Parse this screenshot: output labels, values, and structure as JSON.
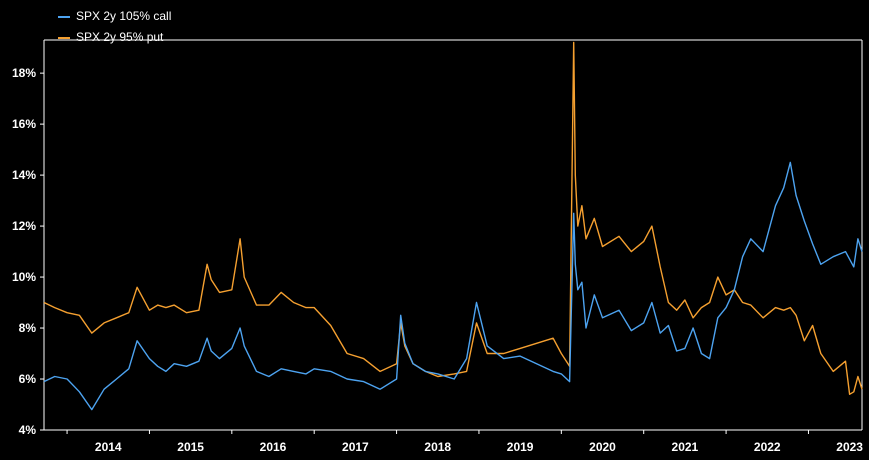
{
  "chart_data": {
    "type": "line",
    "title": "",
    "xlabel": "",
    "ylabel": "",
    "x_tick_labels": [
      "2014",
      "2015",
      "2016",
      "2017",
      "2018",
      "2019",
      "2020",
      "2021",
      "2022",
      "2023"
    ],
    "y_tick_labels": [
      "4%",
      "6%",
      "8%",
      "10%",
      "12%",
      "14%",
      "16%",
      "18%"
    ],
    "ylim": [
      4,
      19.3
    ],
    "xlim": [
      2013.72,
      2023.65
    ],
    "grid": false,
    "legend_position": "top-left",
    "series": [
      {
        "name": "SPX 2y 105% call",
        "color": "#4da3f0",
        "x": [
          2013.72,
          2013.85,
          2014.0,
          2014.15,
          2014.3,
          2014.45,
          2014.6,
          2014.75,
          2014.85,
          2015.0,
          2015.1,
          2015.2,
          2015.3,
          2015.45,
          2015.6,
          2015.7,
          2015.75,
          2015.85,
          2016.0,
          2016.1,
          2016.15,
          2016.3,
          2016.45,
          2016.6,
          2016.75,
          2016.9,
          2017.0,
          2017.2,
          2017.4,
          2017.6,
          2017.8,
          2018.0,
          2018.05,
          2018.1,
          2018.2,
          2018.35,
          2018.5,
          2018.7,
          2018.85,
          2018.97,
          2019.1,
          2019.3,
          2019.5,
          2019.7,
          2019.9,
          2020.0,
          2020.1,
          2020.15,
          2020.17,
          2020.2,
          2020.25,
          2020.3,
          2020.4,
          2020.5,
          2020.7,
          2020.85,
          2021.0,
          2021.1,
          2021.2,
          2021.3,
          2021.4,
          2021.5,
          2021.6,
          2021.7,
          2021.8,
          2021.9,
          2022.0,
          2022.1,
          2022.2,
          2022.3,
          2022.45,
          2022.6,
          2022.7,
          2022.78,
          2022.85,
          2022.95,
          2023.05,
          2023.15,
          2023.3,
          2023.45,
          2023.5,
          2023.55,
          2023.6,
          2023.65
        ],
        "values": [
          5.9,
          6.1,
          6.0,
          5.5,
          4.8,
          5.6,
          6.0,
          6.4,
          7.5,
          6.8,
          6.5,
          6.3,
          6.6,
          6.5,
          6.7,
          7.6,
          7.1,
          6.8,
          7.2,
          8.0,
          7.3,
          6.3,
          6.1,
          6.4,
          6.3,
          6.2,
          6.4,
          6.3,
          6.0,
          5.9,
          5.6,
          6.0,
          8.5,
          7.4,
          6.6,
          6.3,
          6.2,
          6.0,
          6.8,
          9.0,
          7.3,
          6.8,
          6.9,
          6.6,
          6.3,
          6.2,
          5.9,
          12.5,
          10.5,
          9.5,
          9.8,
          8.0,
          9.3,
          8.4,
          8.7,
          7.9,
          8.2,
          9.0,
          7.8,
          8.1,
          7.1,
          7.2,
          8.0,
          7.0,
          6.8,
          8.4,
          8.8,
          9.5,
          10.8,
          11.5,
          11.0,
          12.8,
          13.5,
          14.5,
          13.2,
          12.2,
          11.3,
          10.5,
          10.8,
          11.0,
          10.7,
          10.4,
          11.5,
          11.0
        ]
      },
      {
        "name": "SPX 2y 95% put",
        "color": "#f5a030",
        "x": [
          2013.72,
          2013.85,
          2014.0,
          2014.15,
          2014.3,
          2014.45,
          2014.6,
          2014.75,
          2014.85,
          2015.0,
          2015.1,
          2015.2,
          2015.3,
          2015.45,
          2015.6,
          2015.7,
          2015.75,
          2015.85,
          2016.0,
          2016.1,
          2016.15,
          2016.3,
          2016.45,
          2016.6,
          2016.75,
          2016.9,
          2017.0,
          2017.2,
          2017.4,
          2017.6,
          2017.8,
          2018.0,
          2018.05,
          2018.1,
          2018.2,
          2018.35,
          2018.5,
          2018.7,
          2018.85,
          2018.97,
          2019.1,
          2019.3,
          2019.5,
          2019.7,
          2019.9,
          2020.0,
          2020.1,
          2020.15,
          2020.17,
          2020.2,
          2020.25,
          2020.3,
          2020.4,
          2020.5,
          2020.7,
          2020.85,
          2021.0,
          2021.1,
          2021.2,
          2021.3,
          2021.4,
          2021.5,
          2021.6,
          2021.7,
          2021.8,
          2021.9,
          2022.0,
          2022.1,
          2022.2,
          2022.3,
          2022.45,
          2022.6,
          2022.7,
          2022.78,
          2022.85,
          2022.95,
          2023.05,
          2023.15,
          2023.3,
          2023.45,
          2023.5,
          2023.55,
          2023.6,
          2023.65
        ],
        "values": [
          9.0,
          8.8,
          8.6,
          8.5,
          7.8,
          8.2,
          8.4,
          8.6,
          9.6,
          8.7,
          8.9,
          8.8,
          8.9,
          8.6,
          8.7,
          10.5,
          9.9,
          9.4,
          9.5,
          11.5,
          10.0,
          8.9,
          8.9,
          9.4,
          9.0,
          8.8,
          8.8,
          8.1,
          7.0,
          6.8,
          6.3,
          6.6,
          8.2,
          7.3,
          6.6,
          6.3,
          6.1,
          6.2,
          6.3,
          8.2,
          7.0,
          7.0,
          7.2,
          7.4,
          7.6,
          7.0,
          6.5,
          19.2,
          14.0,
          12.0,
          12.8,
          11.5,
          12.3,
          11.2,
          11.6,
          11.0,
          11.4,
          12.0,
          10.4,
          9.0,
          8.7,
          9.1,
          8.4,
          8.8,
          9.0,
          10.0,
          9.3,
          9.5,
          9.0,
          8.9,
          8.4,
          8.8,
          8.7,
          8.8,
          8.5,
          7.5,
          8.1,
          7.0,
          6.3,
          6.7,
          5.4,
          5.5,
          6.1,
          5.6
        ]
      }
    ]
  }
}
